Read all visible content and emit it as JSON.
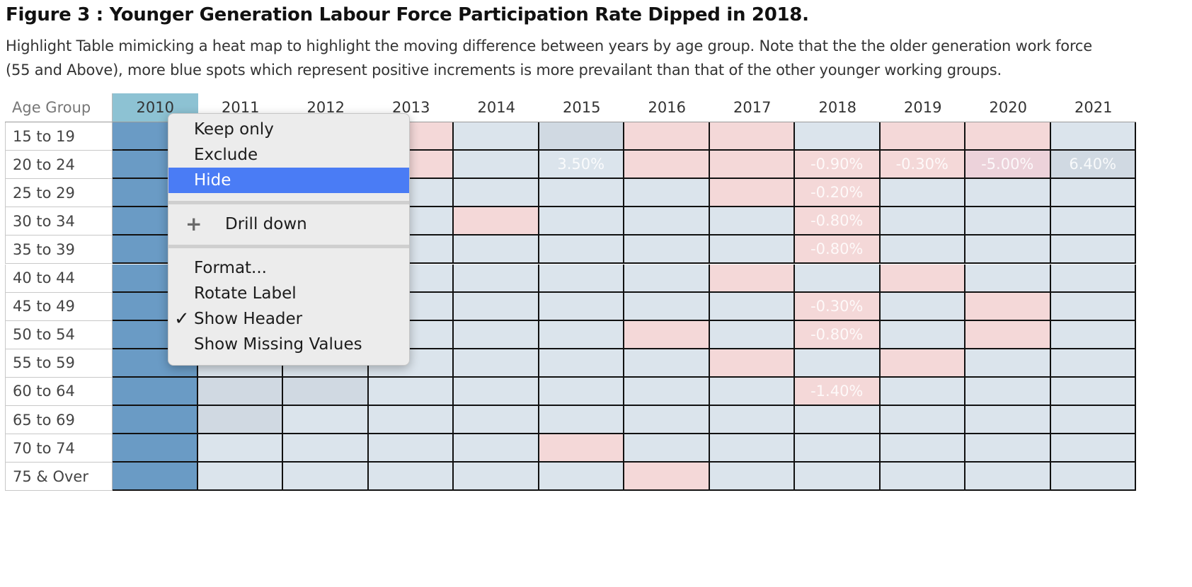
{
  "header": {
    "title": "Figure 3 : Younger Generation Labour Force Participation Rate Dipped in 2018.",
    "subtitle_lines": [
      "Highlight Table mimicking a heat map to highlight the moving difference between years by age group. Note that the the older generation work force",
      "(55 and Above), more blue spots which represent positive increments is more  prevailant than that of the other younger working groups."
    ]
  },
  "table": {
    "corner_label": "Age Group",
    "years": [
      "2010",
      "2011",
      "2012",
      "2013",
      "2014",
      "2015",
      "2016",
      "2017",
      "2018",
      "2019",
      "2020",
      "2021"
    ],
    "selected_year": "2010",
    "rows": [
      {
        "label": "15 to 19",
        "cells": [
          "b",
          "n",
          "n",
          "p",
          "n",
          "g",
          "p",
          "p",
          "n",
          "p",
          "p",
          "n"
        ],
        "texts": [
          "",
          "",
          "",
          "",
          "",
          "",
          "",
          "",
          "",
          "",
          "",
          ""
        ]
      },
      {
        "label": "20 to 24",
        "cells": [
          "b",
          "n",
          "n",
          "p",
          "n",
          "n",
          "p",
          "p",
          "p",
          "p",
          "pp",
          "g"
        ],
        "texts": [
          "",
          "",
          "",
          "",
          "",
          "3.50%",
          "",
          "",
          "-0.90%",
          "-0.30%",
          "-5.00%",
          "6.40%"
        ]
      },
      {
        "label": "25 to 29",
        "cells": [
          "b",
          "n",
          "n",
          "n",
          "n",
          "n",
          "n",
          "p",
          "p",
          "n",
          "n",
          "n"
        ],
        "texts": [
          "",
          "",
          "",
          "",
          "",
          "",
          "",
          "",
          "-0.20%",
          "",
          "",
          ""
        ]
      },
      {
        "label": "30 to 34",
        "cells": [
          "b",
          "n",
          "n",
          "n",
          "p",
          "n",
          "n",
          "n",
          "p",
          "n",
          "n",
          "n"
        ],
        "texts": [
          "",
          "",
          "",
          "",
          "",
          "",
          "",
          "",
          "-0.80%",
          "",
          "",
          ""
        ]
      },
      {
        "label": "35 to 39",
        "cells": [
          "b",
          "n",
          "n",
          "n",
          "n",
          "n",
          "n",
          "n",
          "p",
          "n",
          "n",
          "n"
        ],
        "texts": [
          "",
          "",
          "",
          "",
          "",
          "",
          "",
          "",
          "-0.80%",
          "",
          "",
          ""
        ]
      },
      {
        "label": "40 to 44",
        "cells": [
          "b",
          "n",
          "n",
          "n",
          "n",
          "n",
          "n",
          "p",
          "n",
          "p",
          "n",
          "n"
        ],
        "texts": [
          "",
          "",
          "",
          "",
          "",
          "",
          "",
          "",
          "",
          "",
          "",
          ""
        ]
      },
      {
        "label": "45 to 49",
        "cells": [
          "b",
          "n",
          "n",
          "n",
          "n",
          "n",
          "n",
          "n",
          "p",
          "n",
          "p",
          "n"
        ],
        "texts": [
          "",
          "",
          "",
          "",
          "",
          "",
          "",
          "",
          "-0.30%",
          "",
          "",
          ""
        ]
      },
      {
        "label": "50 to 54",
        "cells": [
          "b",
          "n",
          "n",
          "n",
          "n",
          "n",
          "p",
          "n",
          "p",
          "n",
          "p",
          "n"
        ],
        "texts": [
          "",
          "",
          "",
          "",
          "",
          "",
          "",
          "",
          "-0.80%",
          "",
          "",
          ""
        ]
      },
      {
        "label": "55 to 59",
        "cells": [
          "b",
          "n",
          "n",
          "n",
          "n",
          "n",
          "n",
          "p",
          "n",
          "p",
          "n",
          "n"
        ],
        "texts": [
          "",
          "",
          "",
          "",
          "",
          "",
          "",
          "",
          "",
          "",
          "",
          ""
        ]
      },
      {
        "label": "60 to 64",
        "cells": [
          "b",
          "g",
          "g",
          "n",
          "n",
          "n",
          "n",
          "n",
          "p",
          "n",
          "n",
          "n"
        ],
        "texts": [
          "",
          "",
          "",
          "",
          "",
          "",
          "",
          "",
          "-1.40%",
          "",
          "",
          ""
        ]
      },
      {
        "label": "65 to 69",
        "cells": [
          "b",
          "g",
          "n",
          "n",
          "n",
          "n",
          "n",
          "n",
          "n",
          "n",
          "n",
          "n"
        ],
        "texts": [
          "",
          "",
          "",
          "",
          "",
          "",
          "",
          "",
          "",
          "",
          "",
          ""
        ]
      },
      {
        "label": "70 to 74",
        "cells": [
          "b",
          "n",
          "n",
          "n",
          "n",
          "p",
          "n",
          "n",
          "n",
          "n",
          "n",
          "n"
        ],
        "texts": [
          "",
          "",
          "",
          "",
          "",
          "",
          "",
          "",
          "",
          "",
          "",
          ""
        ]
      },
      {
        "label": "75 & Over",
        "cells": [
          "b",
          "n",
          "n",
          "n",
          "n",
          "n",
          "p",
          "n",
          "n",
          "n",
          "n",
          "n"
        ],
        "texts": [
          "",
          "",
          "",
          "",
          "",
          "",
          "",
          "",
          "",
          "",
          "",
          ""
        ]
      }
    ]
  },
  "colors": {
    "b": "#6a9bc5",
    "n": "#dbe4ec",
    "g": "#d0d9e2",
    "p": "#f4d8d8",
    "pp": "#ecd2da"
  },
  "context_menu": {
    "items": [
      {
        "type": "item",
        "label": "Keep only",
        "name": "menu-item-keep-only"
      },
      {
        "type": "item",
        "label": "Exclude",
        "name": "menu-item-exclude"
      },
      {
        "type": "item",
        "label": "Hide",
        "name": "menu-item-hide",
        "highlighted": true
      },
      {
        "type": "separator"
      },
      {
        "type": "item",
        "label": "Drill down",
        "name": "menu-item-drill-down",
        "icon": "plus-icon"
      },
      {
        "type": "separator"
      },
      {
        "type": "item",
        "label": "Format...",
        "name": "menu-item-format"
      },
      {
        "type": "item",
        "label": "Rotate Label",
        "name": "menu-item-rotate-label"
      },
      {
        "type": "item",
        "label": "Show Header",
        "name": "menu-item-show-header",
        "checked": true
      },
      {
        "type": "item",
        "label": "Show Missing Values",
        "name": "menu-item-show-missing-values"
      }
    ]
  }
}
